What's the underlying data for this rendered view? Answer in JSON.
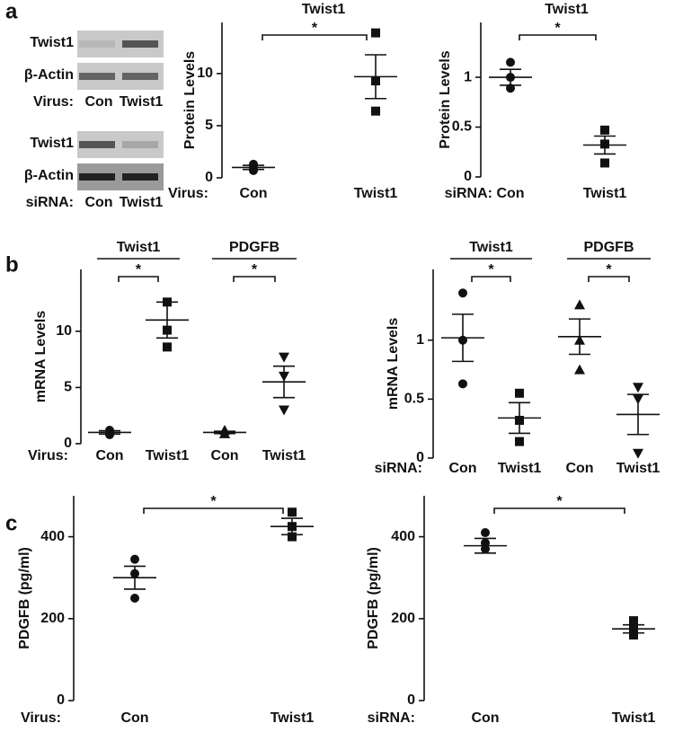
{
  "panels": [
    "a",
    "b",
    "c"
  ],
  "blots": [
    {
      "rows": [
        "Twist1",
        "β-Actin"
      ],
      "condition": "Virus:",
      "lanes": [
        "Con",
        "Twist1"
      ]
    },
    {
      "rows": [
        "Twist1",
        "β-Actin"
      ],
      "condition": "siRNA:",
      "lanes": [
        "Con",
        "Twist1"
      ]
    }
  ],
  "chart_data": [
    {
      "type": "dot",
      "title": "Twist1",
      "y_label": "Protein Levels",
      "x_prefix": "Virus:",
      "categories": [
        "Con",
        "Twist1"
      ],
      "markers": [
        "circle",
        "square"
      ],
      "points": [
        [
          1.3,
          1.0,
          0.7
        ],
        [
          13.9,
          9.3,
          6.4
        ]
      ],
      "means": [
        1.0,
        9.7
      ],
      "errors": [
        0.2,
        2.1
      ],
      "significance": [
        "*"
      ],
      "ylim": [
        0,
        14.9
      ],
      "yticks": [
        0,
        5,
        10
      ]
    },
    {
      "type": "dot",
      "title": "Twist1",
      "y_label": "Protein Levels",
      "x_prefix": "siRNA:",
      "categories": [
        "Con",
        "Twist1"
      ],
      "markers": [
        "circle",
        "square"
      ],
      "points": [
        [
          1.15,
          1.0,
          0.89
        ],
        [
          0.47,
          0.33,
          0.14
        ]
      ],
      "means": [
        1.0,
        0.32
      ],
      "errors": [
        0.08,
        0.09
      ],
      "significance": [
        "*"
      ],
      "ylim": [
        0,
        1.55
      ],
      "yticks": [
        0,
        0.5,
        1
      ]
    },
    {
      "type": "dot",
      "y_label": "mRNA Levels",
      "x_prefix": "Virus:",
      "groups": [
        "Twist1",
        "PDGFB"
      ],
      "categories": [
        "Con",
        "Twist1",
        "Con",
        "Twist1"
      ],
      "markers": [
        "circle",
        "square",
        "triangle",
        "triangle-down"
      ],
      "points": [
        [
          1.2,
          1.0,
          0.8
        ],
        [
          12.6,
          10.1,
          8.6
        ],
        [
          1.2,
          0.9,
          0.9
        ],
        [
          7.7,
          6.0,
          3.0
        ]
      ],
      "means": [
        1.0,
        11.0,
        1.0,
        5.5
      ],
      "errors": [
        0.15,
        1.6,
        0.1,
        1.4
      ],
      "significance": [
        "*",
        "*"
      ],
      "ylim": [
        0,
        15.5
      ],
      "yticks": [
        0,
        5,
        10
      ]
    },
    {
      "type": "dot",
      "y_label": "mRNA Levels",
      "x_prefix": "siRNA:",
      "groups": [
        "Twist1",
        "PDGFB"
      ],
      "categories": [
        "Con",
        "Twist1",
        "Con",
        "Twist1"
      ],
      "markers": [
        "circle",
        "square",
        "triangle",
        "triangle-down"
      ],
      "points": [
        [
          1.4,
          1.0,
          0.63
        ],
        [
          0.55,
          0.32,
          0.14
        ],
        [
          1.3,
          1.0,
          0.75
        ],
        [
          0.6,
          0.5,
          0.04
        ]
      ],
      "means": [
        1.02,
        0.34,
        1.03,
        0.37
      ],
      "errors": [
        0.2,
        0.13,
        0.15,
        0.17
      ],
      "significance": [
        "*",
        "*"
      ],
      "ylim": [
        0,
        1.6
      ],
      "yticks": [
        0,
        0.5,
        1
      ]
    },
    {
      "type": "dot",
      "y_label": "PDGFB (pg/ml)",
      "x_prefix": "Virus:",
      "categories": [
        "Con",
        "Twist1"
      ],
      "markers": [
        "circle",
        "square"
      ],
      "points": [
        [
          345,
          310,
          250
        ],
        [
          460,
          425,
          400
        ]
      ],
      "means": [
        300,
        425
      ],
      "errors": [
        28,
        20
      ],
      "significance": [
        "*"
      ],
      "ylim": [
        0,
        500
      ],
      "yticks": [
        0,
        200,
        400
      ]
    },
    {
      "type": "dot",
      "y_label": "PDGFB (pg/ml)",
      "x_prefix": "siRNA:",
      "categories": [
        "Con",
        "Twist1"
      ],
      "markers": [
        "circle",
        "square"
      ],
      "points": [
        [
          410,
          385,
          370
        ],
        [
          195,
          175,
          160
        ]
      ],
      "means": [
        378,
        175
      ],
      "errors": [
        18,
        10
      ],
      "significance": [
        "*"
      ],
      "ylim": [
        0,
        500
      ],
      "yticks": [
        0,
        200,
        400
      ]
    }
  ]
}
